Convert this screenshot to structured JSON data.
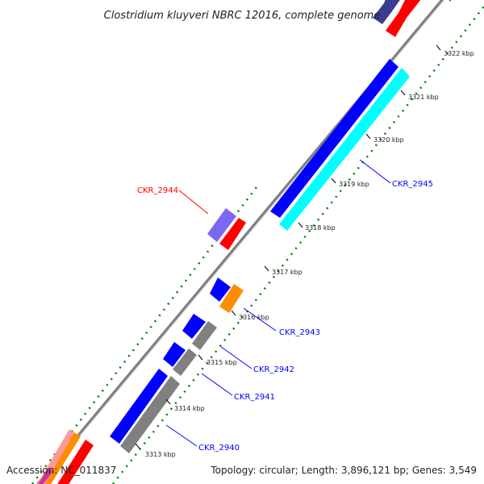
{
  "title": "Clostridium kluyveri NBRC 12016, complete genome",
  "footer": {
    "accession": "Accession: NC_011837",
    "summary": "Topology: circular; Length: 3,896,121 bp; Genes: 3,549"
  },
  "ticks": [
    "3322 kbp",
    "3321 kbp",
    "3320 kbp",
    "3319 kbp",
    "3318 kbp",
    "3317 kbp",
    "3316 kbp",
    "3315 kbp",
    "3314 kbp",
    "3313 kbp"
  ],
  "gene_labels": [
    {
      "text": "CKR_2944",
      "color": "#ff0000"
    },
    {
      "text": "CKR_2945",
      "color": "#0000ff"
    },
    {
      "text": "CKR_2943",
      "color": "#0000ff"
    },
    {
      "text": "CKR_2942",
      "color": "#0000ff"
    },
    {
      "text": "CKR_2941",
      "color": "#0000ff"
    },
    {
      "text": "CKR_2940",
      "color": "#0000ff"
    }
  ],
  "colors": {
    "cds_forward": "#0000ff",
    "cds_reverse": "#ff0000",
    "rna": "#00ffff",
    "orange": "#ff8c00",
    "gray": "#808080",
    "purple": "#7b68ee",
    "navy": "#3b3b8f",
    "backbone": "#808080",
    "tick_dots": "#008000"
  }
}
